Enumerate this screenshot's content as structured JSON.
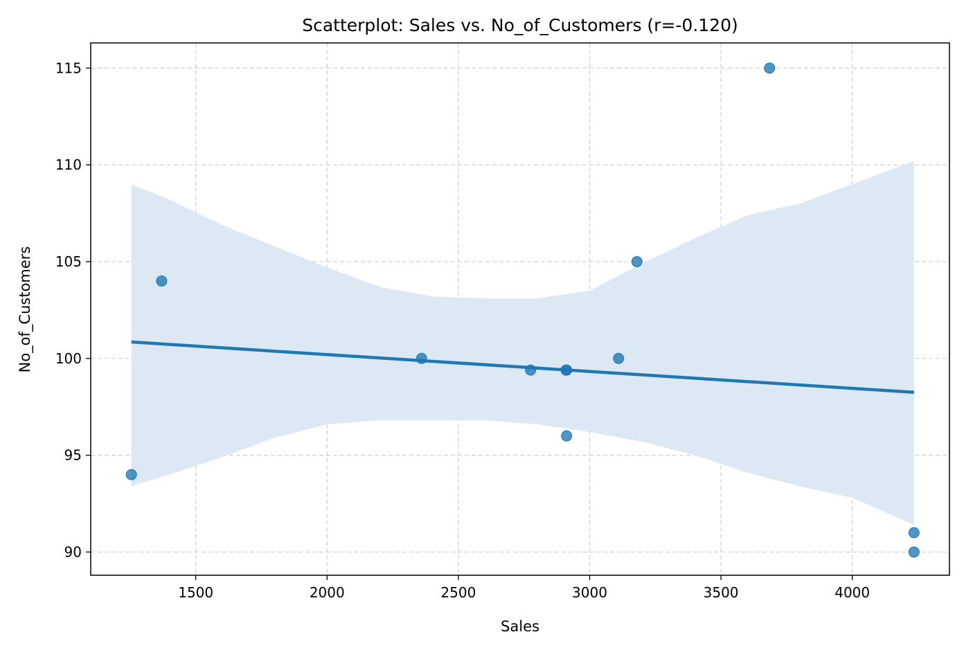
{
  "chart_data": {
    "type": "scatter",
    "title": "Scatterplot: Sales vs. No_of_Customers (r=-0.120)",
    "xlabel": "Sales",
    "ylabel": "No_of_Customers",
    "xlim": [
      1100,
      4370
    ],
    "ylim": [
      88.8,
      116.3
    ],
    "xticks": [
      1500,
      2000,
      2500,
      3000,
      3500,
      4000
    ],
    "yticks": [
      90,
      95,
      100,
      105,
      110,
      115
    ],
    "grid": true,
    "colors": {
      "points": "#1f77b4",
      "band": "#dce8f3",
      "line": "#1f77b4"
    },
    "points": [
      {
        "x": 1255,
        "y": 94
      },
      {
        "x": 1370,
        "y": 104
      },
      {
        "x": 2360,
        "y": 100
      },
      {
        "x": 2775,
        "y": 99.4
      },
      {
        "x": 2910,
        "y": 99.4
      },
      {
        "x": 2912,
        "y": 99.4
      },
      {
        "x": 2912,
        "y": 96
      },
      {
        "x": 3110,
        "y": 100
      },
      {
        "x": 3180,
        "y": 105
      },
      {
        "x": 3685,
        "y": 115
      },
      {
        "x": 4235,
        "y": 91
      },
      {
        "x": 4235,
        "y": 90
      }
    ],
    "regression_line": {
      "x": [
        1255,
        4235
      ],
      "y": [
        100.85,
        98.25
      ]
    },
    "confidence_band": {
      "x": [
        1255,
        1400,
        1600,
        1800,
        2000,
        2200,
        2400,
        2600,
        2800,
        3000,
        3200,
        3400,
        3600,
        3800,
        4000,
        4235
      ],
      "upper": [
        109.0,
        108.2,
        106.9,
        105.8,
        104.7,
        103.7,
        103.2,
        103.1,
        103.1,
        103.5,
        104.9,
        106.2,
        107.4,
        108.0,
        109.0,
        110.2
      ],
      "lower": [
        93.4,
        94.0,
        94.9,
        95.9,
        96.6,
        96.8,
        96.8,
        96.8,
        96.6,
        96.2,
        95.7,
        95.0,
        94.1,
        93.4,
        92.8,
        91.4
      ]
    }
  }
}
